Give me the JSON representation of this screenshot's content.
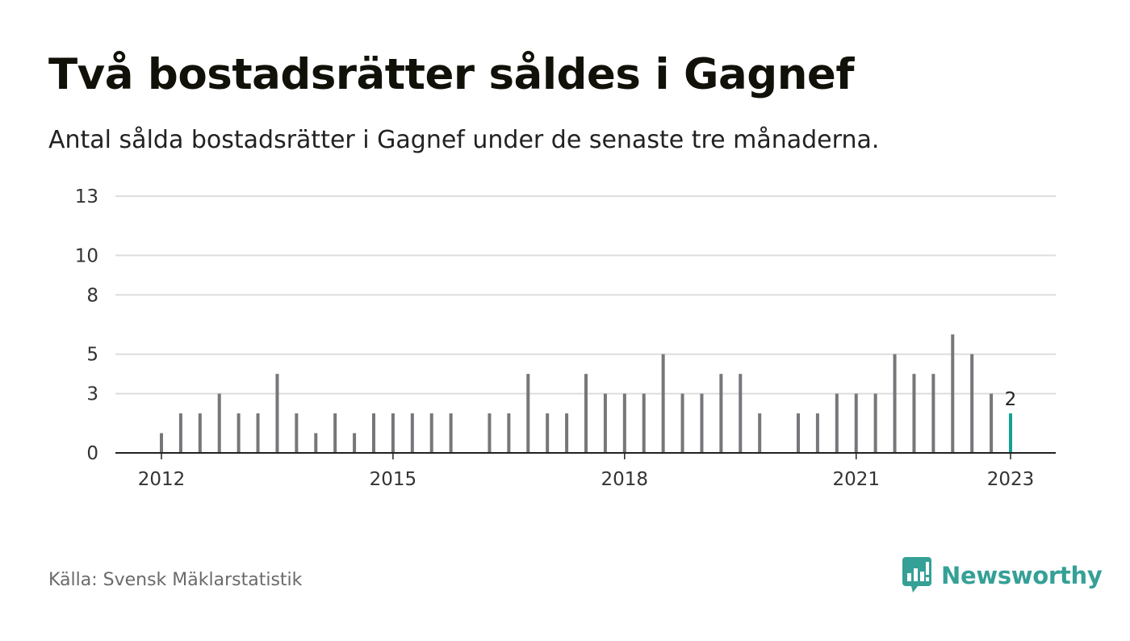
{
  "title": "Två bostadsrätter såldes i Gagnef",
  "subtitle": "Antal sålda bostadsrätter i Gagnef under de senaste tre månaderna.",
  "source": "Källa: Svensk Mäklarstatistik",
  "brand": {
    "name": "Newsworthy",
    "icon": "newsworthy-logo-icon"
  },
  "colors": {
    "bar": "#76767b",
    "highlight": "#12a195",
    "grid": "#dddddd",
    "axis": "#222222",
    "brand": "#35a096"
  },
  "chart_data": {
    "type": "bar",
    "title": "",
    "xlabel": "",
    "ylabel": "",
    "yticks": [
      0,
      3,
      5,
      8,
      10,
      13
    ],
    "ylim": [
      0,
      13
    ],
    "xticks": [
      "2012",
      "2015",
      "2018",
      "2021",
      "2023"
    ],
    "grid": true,
    "period": "quarterly, x values = year + (quarter-1)/4",
    "x": [
      2012.0,
      2012.25,
      2012.5,
      2012.75,
      2013.0,
      2013.25,
      2013.5,
      2013.75,
      2014.0,
      2014.25,
      2014.5,
      2014.75,
      2015.0,
      2015.25,
      2015.5,
      2015.75,
      2016.0,
      2016.25,
      2016.5,
      2016.75,
      2017.0,
      2017.25,
      2017.5,
      2017.75,
      2018.0,
      2018.25,
      2018.5,
      2018.75,
      2019.0,
      2019.25,
      2019.5,
      2019.75,
      2020.0,
      2020.25,
      2020.5,
      2020.75,
      2021.0,
      2021.25,
      2021.5,
      2021.75,
      2022.0,
      2022.25,
      2022.5,
      2022.75,
      2023.0
    ],
    "series": [
      {
        "values": [
          1,
          2,
          2,
          3,
          2,
          2,
          4,
          2,
          1,
          2,
          1,
          2,
          2,
          2,
          2,
          2,
          0,
          2,
          2,
          4,
          2,
          2,
          4,
          3,
          3,
          3,
          5,
          3,
          3,
          4,
          4,
          2,
          0,
          2,
          2,
          3,
          3,
          3,
          5,
          4,
          4,
          6,
          5,
          3,
          2
        ]
      }
    ],
    "highlight": {
      "x": 2023.0,
      "value": 2,
      "label": "2"
    }
  }
}
